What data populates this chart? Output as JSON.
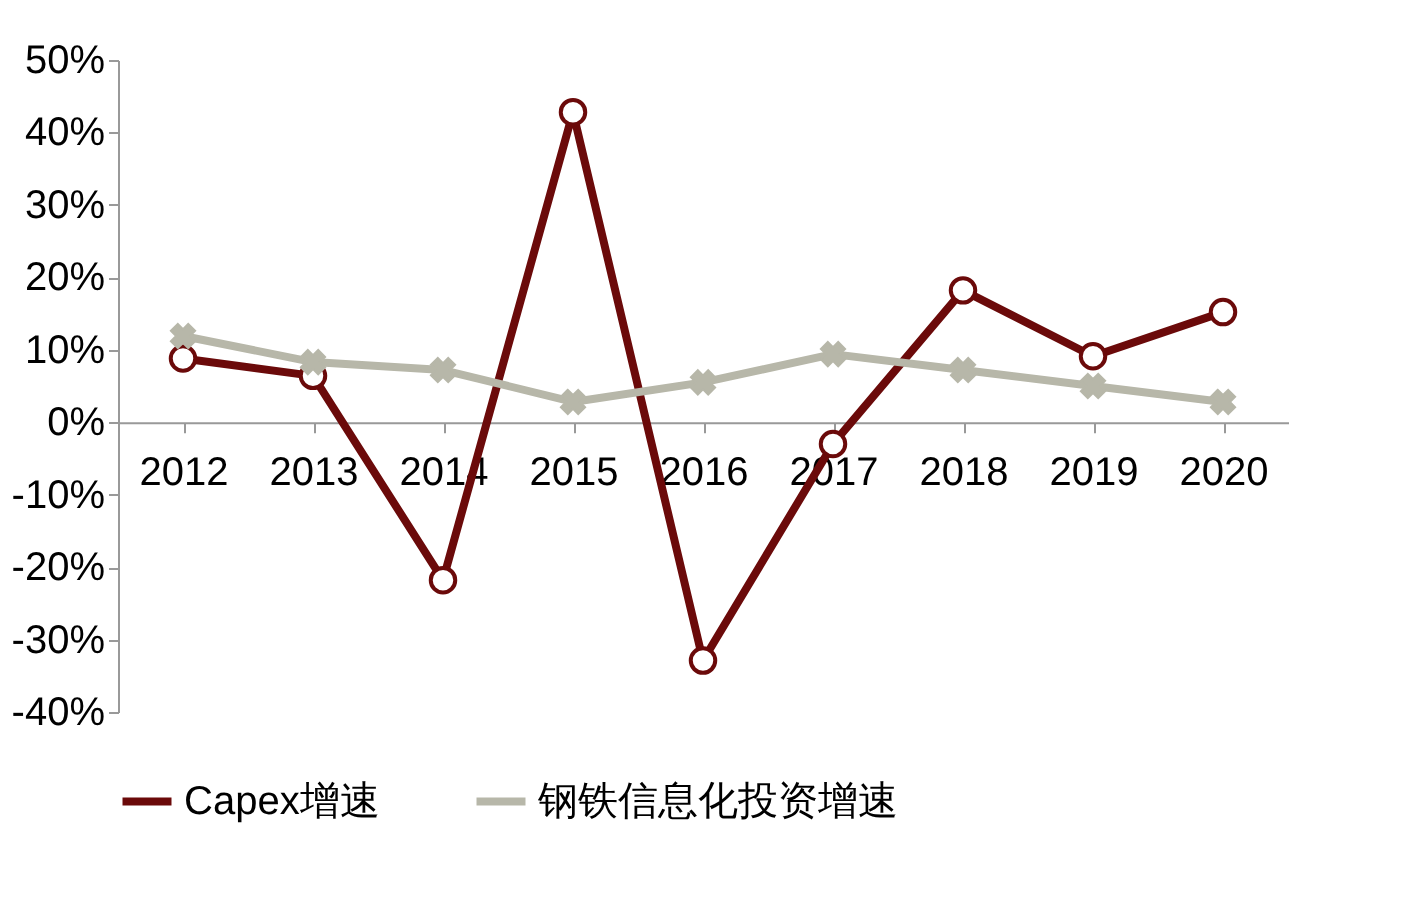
{
  "chart_data": {
    "type": "line",
    "categories": [
      "2012",
      "2013",
      "2014",
      "2015",
      "2016",
      "2017",
      "2018",
      "2019",
      "2020"
    ],
    "series": [
      {
        "name": "Capex增速",
        "color": "#6b0a0a",
        "marker": "circle",
        "values": [
          8.8,
          6.4,
          -21.8,
          42.8,
          -32.9,
          -3,
          18.2,
          9.1,
          15.2
        ]
      },
      {
        "name": "钢铁信息化投资增速",
        "color": "#b7b7a9",
        "marker": "cross",
        "values": [
          11.9,
          8.3,
          7.2,
          2.8,
          5.5,
          9.4,
          7.2,
          5,
          2.8
        ]
      }
    ],
    "ylim": [
      -40,
      50
    ],
    "yticks": [
      {
        "value": -40,
        "label": "-40%"
      },
      {
        "value": -30,
        "label": "-30%"
      },
      {
        "value": -20,
        "label": "-20%"
      },
      {
        "value": -10,
        "label": "-10%"
      },
      {
        "value": 0,
        "label": "0%"
      },
      {
        "value": 10,
        "label": "10%"
      },
      {
        "value": 20,
        "label": "20%"
      },
      {
        "value": 30,
        "label": "30%"
      },
      {
        "value": 40,
        "label": "40%"
      },
      {
        "value": 50,
        "label": "50%"
      }
    ],
    "grid": false,
    "legend": "bottom"
  }
}
